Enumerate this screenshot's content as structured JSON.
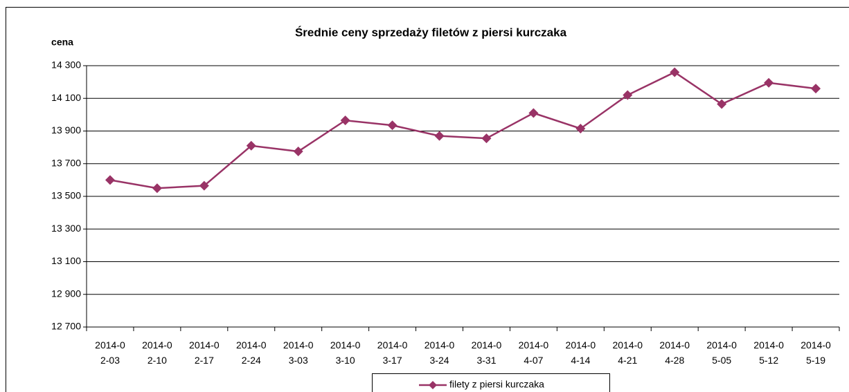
{
  "chart_data": {
    "type": "line",
    "title": "Średnie ceny sprzedaży filetów z piersi kurczaka",
    "y_label": "cena",
    "categories": [
      "2014-02-03",
      "2014-02-10",
      "2014-02-17",
      "2014-02-24",
      "2014-03-03",
      "2014-03-10",
      "2014-03-17",
      "2014-03-24",
      "2014-03-31",
      "2014-04-07",
      "2014-04-14",
      "2014-04-21",
      "2014-04-28",
      "2014-05-05",
      "2014-05-12",
      "2014-05-19"
    ],
    "series": [
      {
        "name": "filety z piersi kurczaka",
        "color": "#993366",
        "values": [
          13600,
          13550,
          13565,
          13810,
          13775,
          13965,
          13935,
          13870,
          13855,
          14010,
          13915,
          14120,
          14260,
          14065,
          14195,
          14160
        ]
      }
    ],
    "ylim": [
      12700,
      14300
    ],
    "yticks": [
      {
        "value": 12700,
        "label": "12 700"
      },
      {
        "value": 12900,
        "label": "12 900"
      },
      {
        "value": 13100,
        "label": "13 100"
      },
      {
        "value": 13300,
        "label": "13 300"
      },
      {
        "value": 13500,
        "label": "13 500"
      },
      {
        "value": 13700,
        "label": "13 700"
      },
      {
        "value": 13900,
        "label": "13 900"
      },
      {
        "value": 14100,
        "label": "14 100"
      },
      {
        "value": 14300,
        "label": "14 300"
      }
    ],
    "grid": true,
    "legend": "bottom"
  }
}
